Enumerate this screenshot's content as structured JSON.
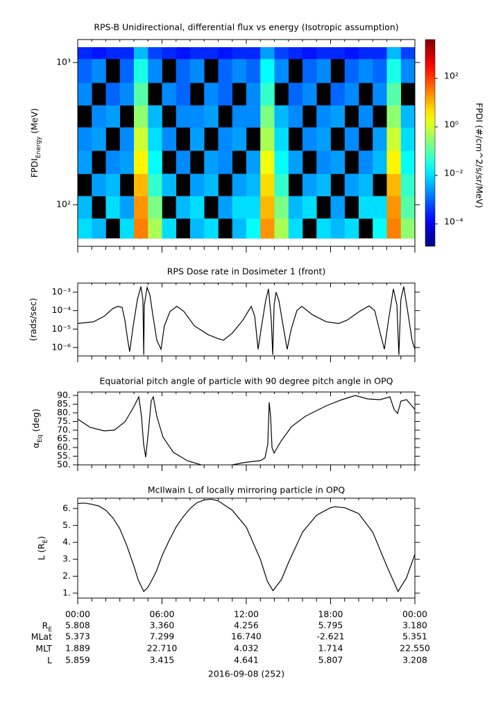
{
  "chart_data": [
    {
      "type": "heatmap",
      "title": "RPS-B  Unidirectional, differential flux vs energy (Isotropic assumption)",
      "ylabel": "FPDI",
      "ylabel_sub": "Energy",
      "ylabel_end": "(MeV)",
      "yscale": "log",
      "ylim": [
        51,
        1450
      ],
      "yticks": [
        {
          "value": 100,
          "label": "10²"
        },
        {
          "value": 1000,
          "label": "10³"
        }
      ],
      "xlim": [
        0,
        24
      ],
      "x_bins": [
        0,
        1,
        2,
        3,
        4,
        5,
        6,
        7,
        8,
        9,
        10,
        11,
        12,
        13,
        14,
        15,
        16,
        17,
        18,
        19,
        20,
        21,
        22,
        23,
        24
      ],
      "y_bins": [
        58,
        80,
        115,
        165,
        240,
        350,
        500,
        720,
        1060,
        1280
      ],
      "colormap": "jet",
      "missing_color": "#000000",
      "clim": [
        1.2e-05,
        4000
      ],
      "colorbar_label": "FPDI (#/cm^2/s/sr/MeV)",
      "colorbar_ticks": [
        {
          "value": 0.0001,
          "label": "10⁻⁴"
        },
        {
          "value": 0.01,
          "label": "10⁻²"
        },
        {
          "value": 1,
          "label": "10⁰"
        },
        {
          "value": 100,
          "label": "10²"
        }
      ],
      "z": [
        [
          0.01,
          0.005,
          null,
          0.01,
          30,
          0.5,
          0.01,
          null,
          0.005,
          0.01,
          null,
          0.005,
          0.02,
          20,
          0.5,
          0.01,
          null,
          0.01,
          0.005,
          0.01,
          null,
          0.02,
          30,
          0.3
        ],
        [
          0.005,
          null,
          0.01,
          0.003,
          20,
          0.2,
          null,
          0.005,
          0.01,
          null,
          0.003,
          0.01,
          0.01,
          10,
          0.2,
          0.005,
          0.01,
          null,
          0.003,
          null,
          0.01,
          0.01,
          20,
          0.1
        ],
        [
          null,
          0.003,
          0.005,
          null,
          10,
          0.05,
          0.005,
          null,
          0.003,
          0.005,
          null,
          0.003,
          0.005,
          5,
          0.05,
          null,
          0.003,
          0.005,
          null,
          0.003,
          0.005,
          null,
          10,
          0.05
        ],
        [
          0.003,
          null,
          0.002,
          0.003,
          3,
          0.02,
          null,
          0.002,
          null,
          0.003,
          0.002,
          null,
          0.003,
          2,
          0.02,
          0.003,
          null,
          0.002,
          0.003,
          null,
          0.002,
          0.005,
          3,
          0.02
        ],
        [
          0.002,
          0.003,
          null,
          0.002,
          1,
          0.01,
          0.002,
          null,
          0.003,
          null,
          0.002,
          0.003,
          null,
          0.5,
          0.01,
          null,
          0.002,
          0.003,
          null,
          0.002,
          null,
          0.003,
          1,
          0.01
        ],
        [
          null,
          0.002,
          0.003,
          null,
          0.3,
          0.005,
          null,
          0.002,
          0.002,
          0.003,
          null,
          0.002,
          0.002,
          0.2,
          0.005,
          0.002,
          null,
          0.002,
          0.003,
          null,
          0.002,
          null,
          0.3,
          0.005
        ],
        [
          0.002,
          null,
          0.001,
          0.002,
          0.1,
          null,
          0.002,
          0.001,
          null,
          0.002,
          0.001,
          null,
          0.002,
          0.05,
          null,
          0.001,
          0.002,
          null,
          0.001,
          0.002,
          null,
          0.002,
          0.1,
          null
        ],
        [
          0.001,
          0.002,
          null,
          0.001,
          0.03,
          0.002,
          null,
          0.001,
          0.002,
          null,
          0.001,
          0.002,
          0.001,
          0.02,
          0.002,
          null,
          0.001,
          0.002,
          null,
          0.001,
          0.002,
          0.001,
          0.03,
          0.002
        ],
        [
          0.0003,
          0.0002,
          0.0003,
          0.0003,
          0.005,
          0.0005,
          0.0003,
          0.0002,
          0.0003,
          0.0003,
          0.0002,
          0.0003,
          0.0003,
          0.003,
          0.0005,
          0.0003,
          0.0002,
          0.0003,
          0.0003,
          0.0002,
          0.0003,
          0.0003,
          0.005,
          0.0005
        ]
      ]
    },
    {
      "type": "line",
      "title": "RPS  Dose rate in Dosimeter 1 (front)",
      "ylabel": "(rads/sec)",
      "yscale": "log",
      "ylim": [
        3.5e-07,
        0.0031
      ],
      "yticks": [
        {
          "value": 0.001,
          "label": "10⁻³"
        },
        {
          "value": 0.0001,
          "label": "10⁻⁴"
        },
        {
          "value": 1e-05,
          "label": "10⁻⁵"
        },
        {
          "value": 1e-06,
          "label": "10⁻⁶"
        }
      ],
      "xlim": [
        0,
        24
      ],
      "color": "#000000",
      "x": [
        0,
        1.14,
        1.9,
        2.5,
        2.86,
        3.16,
        3.36,
        3.56,
        3.7,
        3.95,
        4.25,
        4.5,
        4.64,
        4.7,
        4.74,
        4.94,
        5.14,
        5.33,
        5.63,
        5.93,
        6.17,
        6.57,
        7.06,
        7.56,
        8.3,
        9.28,
        10.0,
        10.37,
        11.0,
        11.75,
        12.35,
        12.6,
        12.84,
        13.09,
        13.38,
        13.58,
        13.78,
        13.88,
        13.98,
        14.12,
        14.32,
        14.62,
        14.91,
        15.2,
        15.6,
        15.95,
        16.7,
        17.68,
        18.57,
        19.16,
        20.15,
        20.74,
        21.14,
        21.53,
        21.83,
        22.12,
        22.47,
        22.72,
        22.86,
        23.0,
        23.21,
        23.51,
        23.8,
        24.0
      ],
      "values": [
        2e-05,
        2.5e-05,
        5e-05,
        0.00013,
        0.00017,
        0.00015,
        3e-05,
        2.5e-06,
        6e-07,
        1.5e-05,
        0.0004,
        0.002,
        0.0004,
        4e-07,
        0.0002,
        0.0018,
        0.0007,
        7e-05,
        2.5e-06,
        8e-07,
        1.5e-05,
        9e-05,
        0.00017,
        9e-05,
        1.5e-05,
        5e-06,
        3e-06,
        2.5e-06,
        6e-06,
        3e-05,
        0.00017,
        5e-05,
        8e-07,
        1.5e-05,
        0.00035,
        0.0015,
        3e-05,
        4e-07,
        0.0002,
        0.001,
        0.00035,
        1.5e-05,
        8e-07,
        1e-05,
        0.0001,
        0.00017,
        6e-05,
        2.5e-05,
        2e-05,
        3e-05,
        0.0001,
        0.00018,
        0.0001,
        6e-06,
        8e-07,
        3e-05,
        0.0015,
        0.0002,
        4e-07,
        0.0004,
        0.002,
        7e-05,
        2.5e-06,
        8e-07
      ]
    },
    {
      "type": "line",
      "title": "Equatorial pitch angle of particle with 90 degree pitch angle in OPQ",
      "ylabel": "α",
      "ylabel_sub": "Eq",
      "ylabel_end": "(deg)",
      "ylim": [
        50,
        92
      ],
      "yticks": [
        {
          "value": 50,
          "label": "50."
        },
        {
          "value": 55,
          "label": "55."
        },
        {
          "value": 60,
          "label": "60."
        },
        {
          "value": 65,
          "label": "65."
        },
        {
          "value": 70,
          "label": "70."
        },
        {
          "value": 75,
          "label": "75."
        },
        {
          "value": 80,
          "label": "80."
        },
        {
          "value": 85,
          "label": "85."
        },
        {
          "value": 90,
          "label": "90."
        }
      ],
      "xlim": [
        0,
        24
      ],
      "color": "#000000",
      "x": [
        0,
        0.89,
        1.88,
        2.6,
        3.36,
        3.95,
        4.35,
        4.54,
        4.69,
        4.84,
        5.04,
        5.23,
        5.38,
        5.63,
        6.07,
        6.81,
        7.8,
        8.79,
        9.9,
        11.01,
        11.75,
        12.49,
        12.99,
        13.33,
        13.53,
        13.63,
        13.73,
        13.83,
        13.98,
        14.12,
        14.47,
        15.21,
        16.2,
        17.68,
        18.67,
        19.75,
        20.64,
        21.53,
        22.22,
        22.52,
        22.77,
        23.01,
        23.41,
        23.7,
        24.0
      ],
      "values": [
        76.4,
        71.6,
        69.6,
        70,
        74.8,
        82.8,
        89.2,
        78,
        62,
        54.4,
        70,
        86.8,
        89.2,
        78,
        66,
        57.2,
        52.4,
        50,
        null,
        50,
        51.2,
        52,
        52.4,
        54,
        62,
        86,
        78,
        60,
        56.8,
        58.8,
        63.6,
        72,
        78,
        84,
        87.2,
        90,
        88,
        87.6,
        89.2,
        82,
        79.6,
        86.8,
        87.6,
        84.8,
        82
      ]
    },
    {
      "type": "line",
      "title": "McIlwain L of locally mirroring particle in OPQ",
      "ylabel": "L (R",
      "ylabel_sub": "E",
      "ylabel_end": ")",
      "ylim": [
        0.71,
        6.61
      ],
      "yticks": [
        {
          "value": 1,
          "label": "1."
        },
        {
          "value": 2,
          "label": "2."
        },
        {
          "value": 3,
          "label": "3."
        },
        {
          "value": 4,
          "label": "4."
        },
        {
          "value": 5,
          "label": "5."
        },
        {
          "value": 6,
          "label": "6."
        }
      ],
      "xlim": [
        0,
        24
      ],
      "color": "#000000",
      "xticks": [
        {
          "value": 0,
          "label": "00:00"
        },
        {
          "value": 6,
          "label": "06:00"
        },
        {
          "value": 12,
          "label": "12:00"
        },
        {
          "value": 18,
          "label": "18:00"
        },
        {
          "value": 24,
          "label": "00:00"
        }
      ],
      "xminorticks": [
        1,
        2,
        3,
        4,
        5,
        7,
        8,
        9,
        10,
        11,
        13,
        14,
        15,
        16,
        17,
        19,
        20,
        21,
        22,
        23
      ],
      "x": [
        0,
        0.5,
        1,
        1.5,
        2,
        2.5,
        3,
        3.5,
        4,
        4.3,
        4.7,
        5,
        5.3,
        5.6,
        6,
        6.5,
        7,
        7.5,
        8,
        8.5,
        9,
        9.5,
        10,
        11,
        12,
        13,
        13.5,
        13.9,
        14.5,
        15,
        16,
        17,
        18,
        18.3,
        19,
        20,
        21,
        22,
        22.8,
        23.4,
        24
      ],
      "values": [
        6.3,
        6.32,
        6.25,
        6.15,
        5.9,
        5.45,
        4.8,
        3.8,
        2.6,
        1.8,
        1.1,
        1.35,
        1.8,
        2.3,
        3.2,
        4.1,
        4.9,
        5.5,
        6.0,
        6.35,
        6.5,
        6.55,
        6.45,
        5.9,
        4.9,
        3.0,
        1.7,
        1.15,
        1.8,
        2.8,
        4.6,
        5.6,
        6.05,
        6.1,
        6.05,
        5.7,
        4.6,
        2.6,
        1.1,
        1.9,
        3.3
      ]
    }
  ],
  "ephemeris": {
    "rows": [
      {
        "label": "R",
        "label_sub": "E",
        "values": [
          "5.808",
          "3.360",
          "4.256",
          "5.795",
          "3.180"
        ]
      },
      {
        "label": "MLat",
        "values": [
          "5.373",
          "7.299",
          "16.740",
          "-2.621",
          "5.351"
        ]
      },
      {
        "label": "MLT",
        "values": [
          "1.889",
          "22.710",
          "4.032",
          "1.714",
          "22.550"
        ]
      },
      {
        "label": "L",
        "values": [
          "5.859",
          "3.415",
          "4.641",
          "5.807",
          "3.208"
        ]
      }
    ],
    "date": "2016-09-08 (252)"
  }
}
